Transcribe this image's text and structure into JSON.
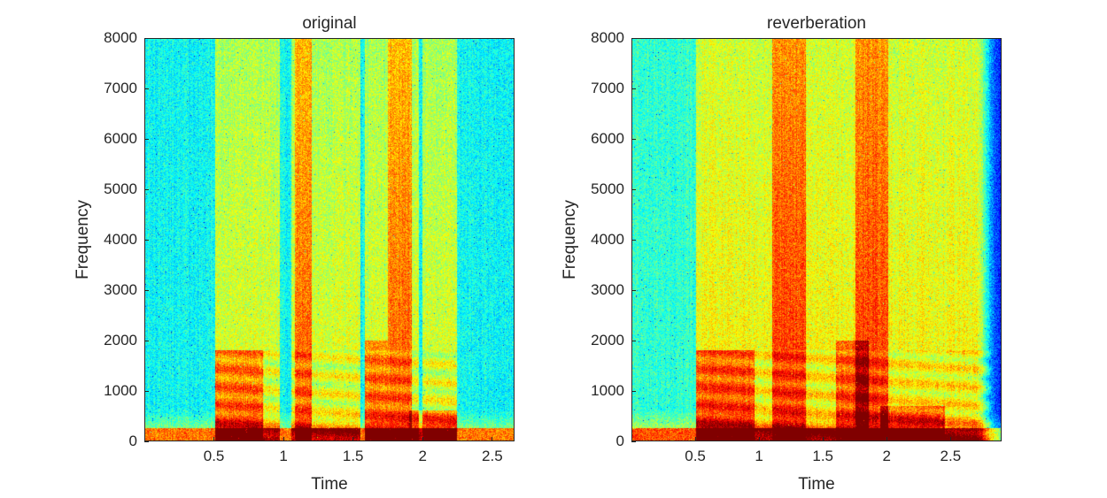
{
  "chart_data": [
    {
      "type": "heatmap",
      "title": "original",
      "xlabel": "Time",
      "ylabel": "Frequency",
      "xlim": [
        0,
        2.66
      ],
      "ylim": [
        0,
        8000
      ],
      "xticks": [
        0.5,
        1,
        1.5,
        2,
        2.5
      ],
      "xtick_labels": [
        "0.5",
        "1",
        "1.5",
        "2",
        "2.5"
      ],
      "yticks": [
        0,
        1000,
        2000,
        3000,
        4000,
        5000,
        6000,
        7000,
        8000
      ],
      "ytick_labels": [
        "0",
        "1000",
        "2000",
        "3000",
        "4000",
        "5000",
        "6000",
        "7000",
        "8000"
      ],
      "colormap": "jet",
      "grid": false,
      "speech_segments_s": [
        [
          0.5,
          0.97
        ],
        [
          1.05,
          1.55
        ],
        [
          1.58,
          1.97
        ],
        [
          2.0,
          2.25
        ]
      ],
      "strong_energy_bands": [
        {
          "t": [
            0.5,
            0.85
          ],
          "f": [
            0,
            1800
          ]
        },
        {
          "t": [
            1.08,
            1.2
          ],
          "f": [
            0,
            8000
          ]
        },
        {
          "t": [
            1.58,
            1.75
          ],
          "f": [
            0,
            2000
          ]
        },
        {
          "t": [
            1.75,
            1.92
          ],
          "f": [
            0,
            8000
          ]
        },
        {
          "t": [
            1.9,
            2.25
          ],
          "f": [
            0,
            600
          ]
        }
      ]
    },
    {
      "type": "heatmap",
      "title": "reverberation",
      "xlabel": "Time",
      "ylabel": "Frequency",
      "xlim": [
        0,
        2.9
      ],
      "ylim": [
        0,
        8000
      ],
      "xticks": [
        0.5,
        1,
        1.5,
        2,
        2.5
      ],
      "xtick_labels": [
        "0.5",
        "1",
        "1.5",
        "2",
        "2.5"
      ],
      "yticks": [
        0,
        1000,
        2000,
        3000,
        4000,
        5000,
        6000,
        7000,
        8000
      ],
      "ytick_labels": [
        "0",
        "1000",
        "2000",
        "3000",
        "4000",
        "5000",
        "6000",
        "7000",
        "8000"
      ],
      "colormap": "jet",
      "grid": false,
      "speech_segments_s": [
        [
          0.5,
          1.05
        ],
        [
          1.05,
          1.6
        ],
        [
          1.6,
          2.05
        ],
        [
          2.05,
          2.7
        ]
      ],
      "strong_energy_bands": [
        {
          "t": [
            0.5,
            0.9
          ],
          "f": [
            0,
            1800
          ]
        },
        {
          "t": [
            1.1,
            1.3
          ],
          "f": [
            0,
            8000
          ]
        },
        {
          "t": [
            1.6,
            1.8
          ],
          "f": [
            0,
            2000
          ]
        },
        {
          "t": [
            1.75,
            1.95
          ],
          "f": [
            0,
            8000
          ]
        },
        {
          "t": [
            1.95,
            2.4
          ],
          "f": [
            0,
            700
          ]
        }
      ]
    }
  ]
}
